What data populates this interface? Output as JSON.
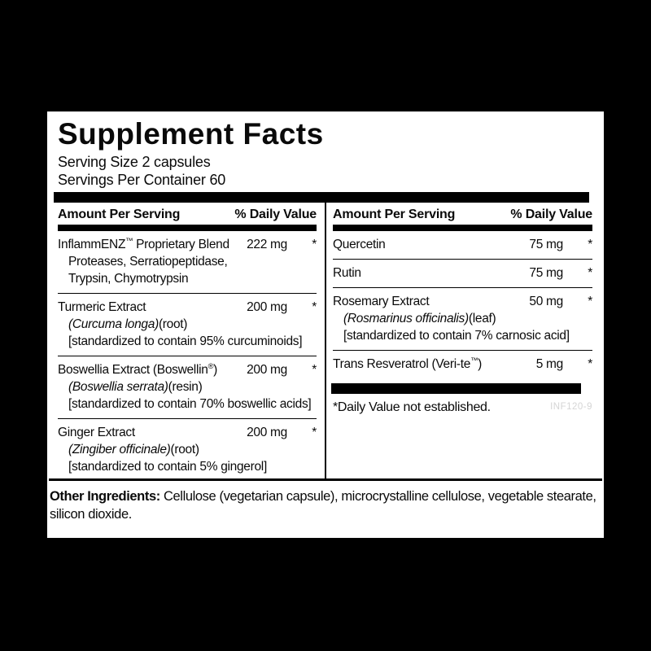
{
  "label": {
    "title": "Supplement Facts",
    "serving_size": "Serving Size 2 capsules",
    "servings_per_container": "Servings Per Container 60",
    "columns": [
      {
        "header": {
          "amount": "Amount Per Serving",
          "dv": "% Daily Value"
        },
        "rows": [
          {
            "name": "InflammENZ™ Proprietary Blend",
            "amount": "222 mg",
            "dv": "*",
            "sublines": [
              [
                {
                  "text": "Proteases, Serratiopeptidase,",
                  "italic": false
                }
              ],
              [
                {
                  "text": "Trypsin, Chymotrypsin",
                  "italic": false
                }
              ]
            ]
          },
          {
            "name": "Turmeric Extract",
            "amount": "200 mg",
            "dv": "*",
            "sublines": [
              [
                {
                  "text": "(Curcuma longa)",
                  "italic": true
                },
                {
                  "text": "(root)",
                  "italic": false
                }
              ],
              [
                {
                  "text": "[standardized to contain 95% curcuminoids]",
                  "italic": false
                }
              ]
            ]
          },
          {
            "name": "Boswellia Extract (Boswellin®)",
            "amount": "200 mg",
            "dv": "*",
            "sublines": [
              [
                {
                  "text": "(Boswellia serrata)",
                  "italic": true
                },
                {
                  "text": "(resin)",
                  "italic": false
                }
              ],
              [
                {
                  "text": "[standardized to contain 70% boswellic acids]",
                  "italic": false
                }
              ]
            ]
          },
          {
            "name": "Ginger Extract",
            "amount": "200 mg",
            "dv": "*",
            "sublines": [
              [
                {
                  "text": "(Zingiber officinale)",
                  "italic": true
                },
                {
                  "text": "(root)",
                  "italic": false
                }
              ],
              [
                {
                  "text": "[standardized to contain 5% gingerol]",
                  "italic": false
                }
              ]
            ]
          }
        ]
      },
      {
        "header": {
          "amount": "Amount Per Serving",
          "dv": "% Daily Value"
        },
        "rows": [
          {
            "name": "Quercetin",
            "amount": "75 mg",
            "dv": "*",
            "sublines": []
          },
          {
            "name": "Rutin",
            "amount": "75 mg",
            "dv": "*",
            "sublines": []
          },
          {
            "name": "Rosemary Extract",
            "amount": "50 mg",
            "dv": "*",
            "sublines": [
              [
                {
                  "text": "(Rosmarinus officinalis)",
                  "italic": true
                },
                {
                  "text": "(leaf)",
                  "italic": false
                }
              ],
              [
                {
                  "text": "[standardized to contain 7% carnosic acid]",
                  "italic": false
                }
              ]
            ]
          },
          {
            "name": "Trans Resveratrol (Veri-te™)",
            "amount": "5 mg",
            "dv": "*",
            "sublines": []
          }
        ],
        "footnote": "*Daily Value not established.",
        "code": "INF120-9"
      }
    ],
    "other_ingredients_label": "Other Ingredients:",
    "other_ingredients_text": "Cellulose (vegetarian capsule), microcrystalline cellulose, vegetable stearate, silicon dioxide."
  },
  "colors": {
    "background": "#000000",
    "panel_bg": "#ffffff",
    "ink": "#0a0a0a",
    "code_gray": "#d5d5d5"
  }
}
